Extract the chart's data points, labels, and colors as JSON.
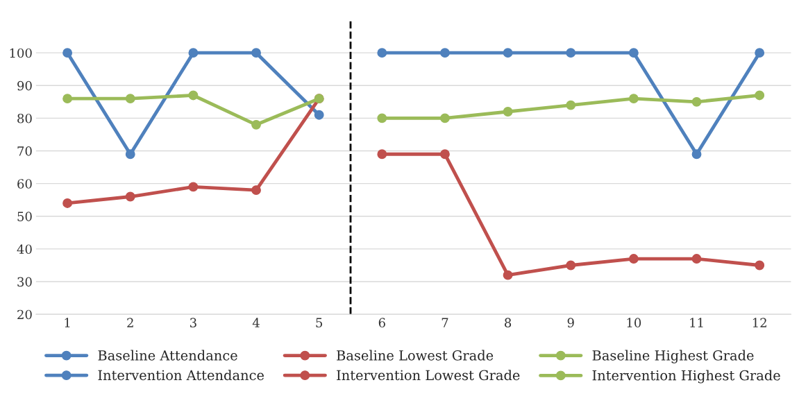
{
  "chart_data": {
    "type": "line",
    "x": [
      1,
      2,
      3,
      4,
      5,
      6,
      7,
      8,
      9,
      10,
      11,
      12
    ],
    "xlim": [
      0.5,
      12.5
    ],
    "xticks": [
      1,
      2,
      3,
      4,
      5,
      6,
      7,
      8,
      9,
      10,
      11,
      12
    ],
    "ylim": [
      20,
      110
    ],
    "yticks": [
      20,
      30,
      40,
      50,
      60,
      70,
      80,
      90,
      100
    ],
    "grid": "y",
    "legend": "bottom",
    "marker": "circle",
    "line_style": "solid",
    "ref_lines": [
      {
        "axis": "x",
        "value": 5.5,
        "color": "#000000",
        "line_style": "dashed"
      }
    ],
    "series": [
      {
        "name": "Baseline Attendance",
        "color": "#4f81bd",
        "values": [
          100,
          69,
          100,
          100,
          81,
          null,
          null,
          null,
          null,
          null,
          null,
          null
        ]
      },
      {
        "name": "Intervention Attendance",
        "color": "#4f81bd",
        "values": [
          null,
          null,
          null,
          null,
          null,
          100,
          100,
          100,
          100,
          100,
          69,
          100
        ]
      },
      {
        "name": "Baseline Lowest Grade",
        "color": "#c0504d",
        "values": [
          54,
          56,
          59,
          58,
          86,
          null,
          null,
          null,
          null,
          null,
          null,
          null
        ]
      },
      {
        "name": "Intervention Lowest Grade",
        "color": "#c0504d",
        "values": [
          null,
          null,
          null,
          null,
          null,
          69,
          69,
          32,
          35,
          37,
          37,
          35
        ]
      },
      {
        "name": "Baseline Highest Grade",
        "color": "#9bbb59",
        "values": [
          86,
          86,
          87,
          78,
          86,
          null,
          null,
          null,
          null,
          null,
          null,
          null
        ]
      },
      {
        "name": "Intervention Highest Grade",
        "color": "#9bbb59",
        "values": [
          null,
          null,
          null,
          null,
          null,
          80,
          80,
          82,
          84,
          86,
          85,
          87
        ]
      }
    ]
  }
}
